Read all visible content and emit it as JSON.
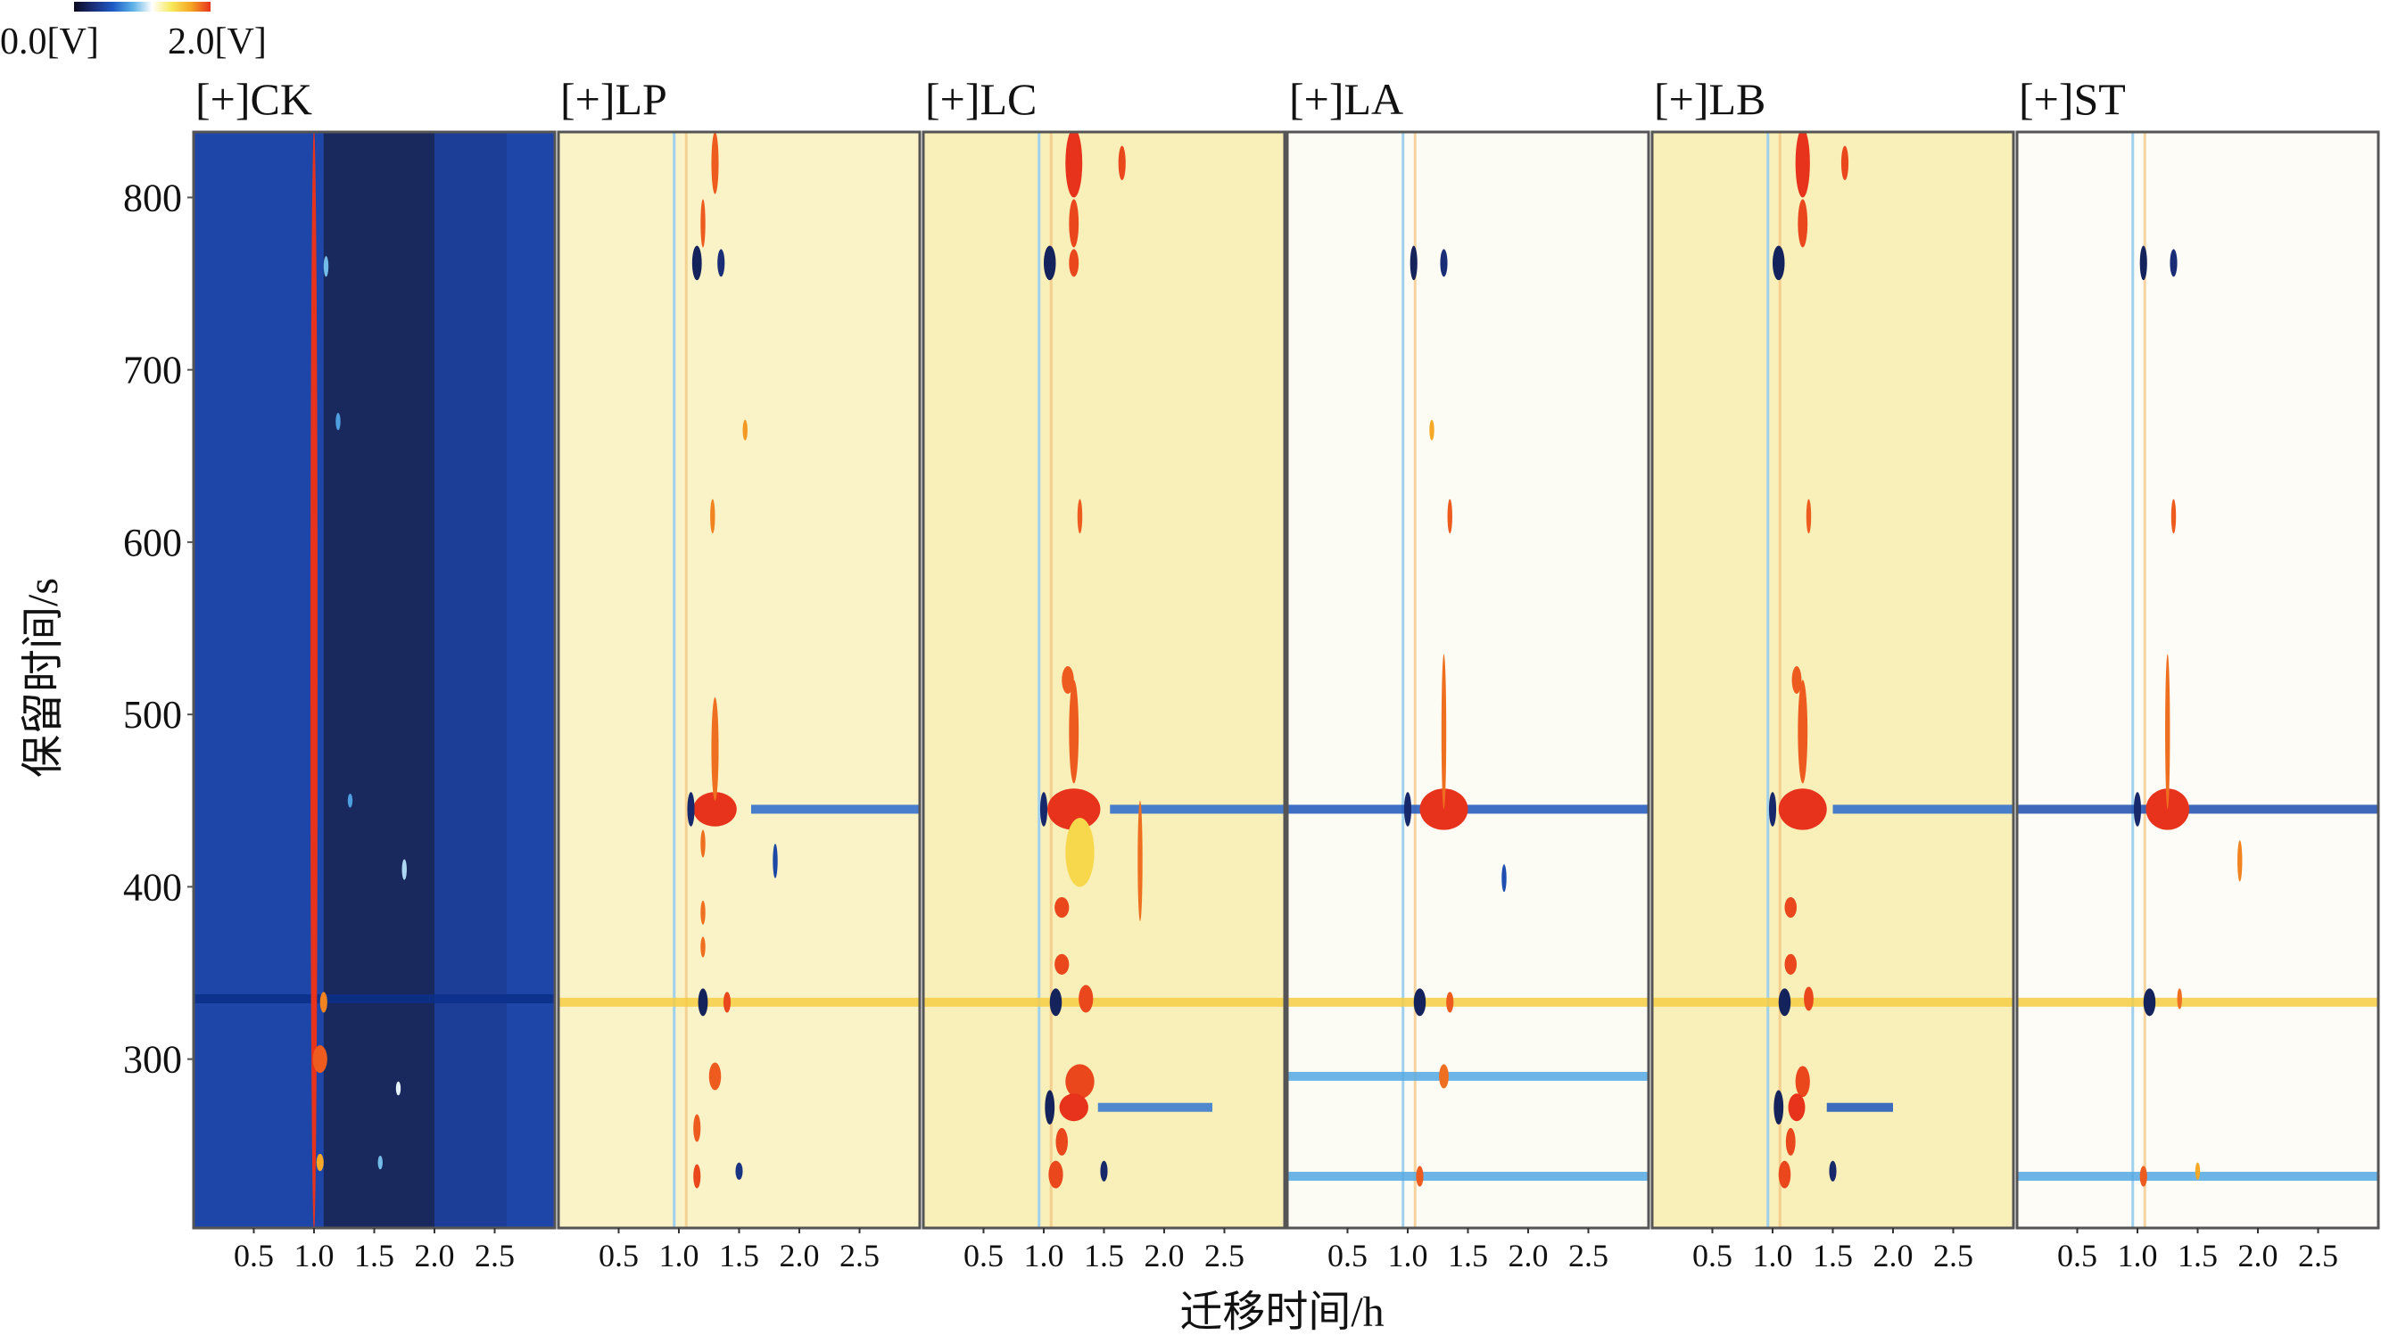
{
  "chart_data": {
    "type": "heatmap",
    "title": "",
    "xlabel": "迁移时间/h",
    "ylabel": "保留时间/s",
    "xlim": [
      0.0,
      3.0
    ],
    "ylim": [
      202,
      838
    ],
    "xticks": [
      "0.5",
      "1.0",
      "1.5",
      "2.0",
      "2.5"
    ],
    "xtick_values": [
      0.5,
      1.0,
      1.5,
      2.0,
      2.5
    ],
    "yticks": [
      "300",
      "400",
      "500",
      "600",
      "700",
      "800"
    ],
    "ytick_values": [
      300,
      400,
      500,
      600,
      700,
      800
    ],
    "grid": false,
    "colorbar": {
      "min_label": "0.0[V]",
      "max_label": "2.0[V]",
      "min": 0.0,
      "max": 2.0,
      "placement": "top-left",
      "colors": [
        "#0b0b1e",
        "#1a2f7a",
        "#1e5bc6",
        "#5ab0e6",
        "#ffffff",
        "#f7e95a",
        "#f5a623",
        "#e8331c"
      ]
    },
    "panels": [
      {
        "name": "CK",
        "label": "[+]CK",
        "mode": "absolute",
        "background": "#1e45a8",
        "features": [
          {
            "x": 1.0,
            "y": 520,
            "dx": 0.03,
            "dy": 320,
            "v": 2.0
          },
          {
            "x": 1.05,
            "y": 300,
            "dx": 0.06,
            "dy": 8,
            "v": 1.9
          },
          {
            "x": 1.08,
            "y": 333,
            "dx": 0.03,
            "dy": 6,
            "v": 1.8
          },
          {
            "x": 1.05,
            "y": 240,
            "dx": 0.03,
            "dy": 5,
            "v": 1.7
          },
          {
            "x": 1.7,
            "y": 283,
            "dx": 0.02,
            "dy": 4,
            "v": 1.1
          },
          {
            "x": 1.75,
            "y": 410,
            "dx": 0.02,
            "dy": 6,
            "v": 1.0
          },
          {
            "x": 1.55,
            "y": 240,
            "dx": 0.02,
            "dy": 4,
            "v": 0.9
          },
          {
            "x": 1.1,
            "y": 760,
            "dx": 0.02,
            "dy": 6,
            "v": 0.9
          },
          {
            "x": 1.2,
            "y": 670,
            "dx": 0.02,
            "dy": 5,
            "v": 0.8
          },
          {
            "x": 1.3,
            "y": 450,
            "dx": 0.02,
            "dy": 4,
            "v": 0.8
          }
        ],
        "bands": [
          {
            "y": 335,
            "v": 0.35
          }
        ]
      },
      {
        "name": "LP",
        "label": "[+]LP",
        "mode": "difference",
        "background": "#faf3c8",
        "features": [
          {
            "x": 1.3,
            "y": 445,
            "dx": 0.18,
            "dy": 10,
            "v": 2.0
          },
          {
            "x": 1.1,
            "y": 445,
            "dx": 0.03,
            "dy": 10,
            "v": -1.8
          },
          {
            "x": 1.3,
            "y": 480,
            "dx": 0.03,
            "dy": 30,
            "v": 1.7
          },
          {
            "x": 1.3,
            "y": 820,
            "dx": 0.03,
            "dy": 18,
            "v": 1.8
          },
          {
            "x": 1.2,
            "y": 785,
            "dx": 0.02,
            "dy": 14,
            "v": 1.8
          },
          {
            "x": 1.15,
            "y": 762,
            "dx": 0.04,
            "dy": 10,
            "v": -1.9
          },
          {
            "x": 1.35,
            "y": 762,
            "dx": 0.03,
            "dy": 8,
            "v": -1.7
          },
          {
            "x": 1.28,
            "y": 615,
            "dx": 0.02,
            "dy": 10,
            "v": 1.6
          },
          {
            "x": 1.55,
            "y": 665,
            "dx": 0.02,
            "dy": 6,
            "v": 1.5
          },
          {
            "x": 1.2,
            "y": 333,
            "dx": 0.04,
            "dy": 8,
            "v": -1.9
          },
          {
            "x": 1.4,
            "y": 333,
            "dx": 0.03,
            "dy": 6,
            "v": 1.9
          },
          {
            "x": 1.3,
            "y": 290,
            "dx": 0.05,
            "dy": 8,
            "v": 1.8
          },
          {
            "x": 1.15,
            "y": 260,
            "dx": 0.03,
            "dy": 8,
            "v": 1.8
          },
          {
            "x": 1.15,
            "y": 232,
            "dx": 0.03,
            "dy": 7,
            "v": 1.9
          },
          {
            "x": 1.5,
            "y": 235,
            "dx": 0.03,
            "dy": 5,
            "v": -1.6
          },
          {
            "x": 1.8,
            "y": 415,
            "dx": 0.02,
            "dy": 10,
            "v": -1.3
          },
          {
            "x": 1.2,
            "y": 425,
            "dx": 0.02,
            "dy": 8,
            "v": 1.7
          },
          {
            "x": 1.2,
            "y": 385,
            "dx": 0.02,
            "dy": 7,
            "v": 1.7
          },
          {
            "x": 1.2,
            "y": 365,
            "dx": 0.02,
            "dy": 6,
            "v": 1.7
          }
        ],
        "bands": [
          {
            "y": 445,
            "x0": 1.6,
            "v": -0.9
          },
          {
            "y": 333,
            "v": 1.1
          }
        ]
      },
      {
        "name": "LC",
        "label": "[+]LC",
        "mode": "difference",
        "background": "#f9efb8",
        "features": [
          {
            "x": 1.25,
            "y": 445,
            "dx": 0.22,
            "dy": 12,
            "v": 2.0
          },
          {
            "x": 1.0,
            "y": 445,
            "dx": 0.03,
            "dy": 10,
            "v": -1.8
          },
          {
            "x": 1.25,
            "y": 490,
            "dx": 0.04,
            "dy": 30,
            "v": 1.8
          },
          {
            "x": 1.25,
            "y": 820,
            "dx": 0.07,
            "dy": 20,
            "v": 2.0
          },
          {
            "x": 1.65,
            "y": 820,
            "dx": 0.03,
            "dy": 10,
            "v": 1.9
          },
          {
            "x": 1.25,
            "y": 785,
            "dx": 0.04,
            "dy": 14,
            "v": 1.9
          },
          {
            "x": 1.05,
            "y": 762,
            "dx": 0.05,
            "dy": 10,
            "v": -1.9
          },
          {
            "x": 1.25,
            "y": 762,
            "dx": 0.04,
            "dy": 8,
            "v": 1.9
          },
          {
            "x": 1.3,
            "y": 615,
            "dx": 0.02,
            "dy": 10,
            "v": 1.8
          },
          {
            "x": 1.2,
            "y": 520,
            "dx": 0.05,
            "dy": 8,
            "v": 1.8
          },
          {
            "x": 1.8,
            "y": 415,
            "dx": 0.02,
            "dy": 35,
            "v": 1.7
          },
          {
            "x": 1.3,
            "y": 420,
            "dx": 0.12,
            "dy": 20,
            "v": 1.0
          },
          {
            "x": 1.15,
            "y": 388,
            "dx": 0.06,
            "dy": 6,
            "v": 1.9
          },
          {
            "x": 1.15,
            "y": 355,
            "dx": 0.06,
            "dy": 6,
            "v": 1.9
          },
          {
            "x": 1.1,
            "y": 333,
            "dx": 0.05,
            "dy": 8,
            "v": -1.9
          },
          {
            "x": 1.35,
            "y": 335,
            "dx": 0.06,
            "dy": 8,
            "v": 1.9
          },
          {
            "x": 1.3,
            "y": 287,
            "dx": 0.12,
            "dy": 10,
            "v": 1.9
          },
          {
            "x": 1.25,
            "y": 272,
            "dx": 0.12,
            "dy": 8,
            "v": 2.0
          },
          {
            "x": 1.05,
            "y": 272,
            "dx": 0.04,
            "dy": 10,
            "v": -1.9
          },
          {
            "x": 1.15,
            "y": 252,
            "dx": 0.05,
            "dy": 8,
            "v": 1.9
          },
          {
            "x": 1.1,
            "y": 233,
            "dx": 0.06,
            "dy": 8,
            "v": 1.9
          },
          {
            "x": 1.5,
            "y": 235,
            "dx": 0.03,
            "dy": 6,
            "v": -1.8
          }
        ],
        "bands": [
          {
            "y": 445,
            "x0": 1.55,
            "v": -0.9
          },
          {
            "y": 333,
            "v": 1.1
          },
          {
            "y": 272,
            "x0": 1.45,
            "x1": 2.4,
            "v": -0.8
          }
        ]
      },
      {
        "name": "LA",
        "label": "[+]LA",
        "mode": "difference",
        "background": "#fdfcf4",
        "features": [
          {
            "x": 1.3,
            "y": 445,
            "dx": 0.2,
            "dy": 12,
            "v": 2.0
          },
          {
            "x": 1.0,
            "y": 445,
            "dx": 0.03,
            "dy": 10,
            "v": -1.8
          },
          {
            "x": 1.3,
            "y": 490,
            "dx": 0.02,
            "dy": 45,
            "v": 1.7
          },
          {
            "x": 1.05,
            "y": 762,
            "dx": 0.03,
            "dy": 10,
            "v": -1.9
          },
          {
            "x": 1.3,
            "y": 762,
            "dx": 0.03,
            "dy": 8,
            "v": -1.7
          },
          {
            "x": 1.35,
            "y": 615,
            "dx": 0.02,
            "dy": 10,
            "v": 1.8
          },
          {
            "x": 1.2,
            "y": 665,
            "dx": 0.02,
            "dy": 6,
            "v": 1.4
          },
          {
            "x": 1.1,
            "y": 333,
            "dx": 0.05,
            "dy": 8,
            "v": -1.9
          },
          {
            "x": 1.35,
            "y": 333,
            "dx": 0.03,
            "dy": 6,
            "v": 1.8
          },
          {
            "x": 1.3,
            "y": 290,
            "dx": 0.04,
            "dy": 7,
            "v": 1.7
          },
          {
            "x": 1.1,
            "y": 232,
            "dx": 0.03,
            "dy": 6,
            "v": 1.8
          },
          {
            "x": 1.8,
            "y": 405,
            "dx": 0.02,
            "dy": 8,
            "v": -1.2
          }
        ],
        "bands": [
          {
            "y": 445,
            "v": -1.1
          },
          {
            "y": 333,
            "v": 1.1
          },
          {
            "y": 290,
            "v": -0.4
          },
          {
            "y": 232,
            "v": -0.4
          }
        ]
      },
      {
        "name": "LB",
        "label": "[+]LB",
        "mode": "difference",
        "background": "#f9efb8",
        "features": [
          {
            "x": 1.25,
            "y": 445,
            "dx": 0.2,
            "dy": 12,
            "v": 2.0
          },
          {
            "x": 1.0,
            "y": 445,
            "dx": 0.03,
            "dy": 10,
            "v": -1.8
          },
          {
            "x": 1.25,
            "y": 490,
            "dx": 0.04,
            "dy": 30,
            "v": 1.8
          },
          {
            "x": 1.25,
            "y": 820,
            "dx": 0.06,
            "dy": 20,
            "v": 2.0
          },
          {
            "x": 1.6,
            "y": 820,
            "dx": 0.03,
            "dy": 10,
            "v": 1.9
          },
          {
            "x": 1.25,
            "y": 785,
            "dx": 0.04,
            "dy": 14,
            "v": 1.9
          },
          {
            "x": 1.05,
            "y": 762,
            "dx": 0.05,
            "dy": 10,
            "v": -1.9
          },
          {
            "x": 1.3,
            "y": 615,
            "dx": 0.02,
            "dy": 10,
            "v": 1.8
          },
          {
            "x": 1.2,
            "y": 520,
            "dx": 0.04,
            "dy": 8,
            "v": 1.8
          },
          {
            "x": 1.15,
            "y": 388,
            "dx": 0.05,
            "dy": 6,
            "v": 1.9
          },
          {
            "x": 1.15,
            "y": 355,
            "dx": 0.05,
            "dy": 6,
            "v": 1.9
          },
          {
            "x": 1.1,
            "y": 333,
            "dx": 0.05,
            "dy": 8,
            "v": -1.9
          },
          {
            "x": 1.3,
            "y": 335,
            "dx": 0.04,
            "dy": 7,
            "v": 1.9
          },
          {
            "x": 1.25,
            "y": 287,
            "dx": 0.06,
            "dy": 9,
            "v": 1.9
          },
          {
            "x": 1.2,
            "y": 272,
            "dx": 0.07,
            "dy": 8,
            "v": 2.0
          },
          {
            "x": 1.05,
            "y": 272,
            "dx": 0.04,
            "dy": 10,
            "v": -1.9
          },
          {
            "x": 1.15,
            "y": 252,
            "dx": 0.04,
            "dy": 8,
            "v": 1.9
          },
          {
            "x": 1.1,
            "y": 233,
            "dx": 0.05,
            "dy": 8,
            "v": 1.9
          },
          {
            "x": 1.5,
            "y": 235,
            "dx": 0.03,
            "dy": 6,
            "v": -1.8
          }
        ],
        "bands": [
          {
            "y": 445,
            "x0": 1.5,
            "v": -0.9
          },
          {
            "y": 333,
            "v": 1.1
          },
          {
            "y": 272,
            "x0": 1.45,
            "x1": 2.0,
            "v": -1.1
          }
        ]
      },
      {
        "name": "ST",
        "label": "[+]ST",
        "mode": "difference",
        "background": "#fdfcf6",
        "features": [
          {
            "x": 1.25,
            "y": 445,
            "dx": 0.18,
            "dy": 12,
            "v": 2.0
          },
          {
            "x": 1.0,
            "y": 445,
            "dx": 0.03,
            "dy": 10,
            "v": -1.8
          },
          {
            "x": 1.25,
            "y": 490,
            "dx": 0.02,
            "dy": 45,
            "v": 1.7
          },
          {
            "x": 1.85,
            "y": 415,
            "dx": 0.02,
            "dy": 12,
            "v": 1.6
          },
          {
            "x": 1.05,
            "y": 762,
            "dx": 0.03,
            "dy": 10,
            "v": -1.9
          },
          {
            "x": 1.3,
            "y": 762,
            "dx": 0.03,
            "dy": 8,
            "v": -1.7
          },
          {
            "x": 1.3,
            "y": 615,
            "dx": 0.02,
            "dy": 10,
            "v": 1.8
          },
          {
            "x": 1.1,
            "y": 333,
            "dx": 0.05,
            "dy": 8,
            "v": -1.9
          },
          {
            "x": 1.35,
            "y": 335,
            "dx": 0.02,
            "dy": 6,
            "v": 1.7
          },
          {
            "x": 1.05,
            "y": 232,
            "dx": 0.03,
            "dy": 6,
            "v": 1.8
          },
          {
            "x": 1.5,
            "y": 235,
            "dx": 0.02,
            "dy": 5,
            "v": 1.4
          }
        ],
        "bands": [
          {
            "y": 445,
            "v": -1.2
          },
          {
            "y": 333,
            "v": 1.1
          },
          {
            "y": 232,
            "v": -0.4
          }
        ]
      }
    ]
  }
}
